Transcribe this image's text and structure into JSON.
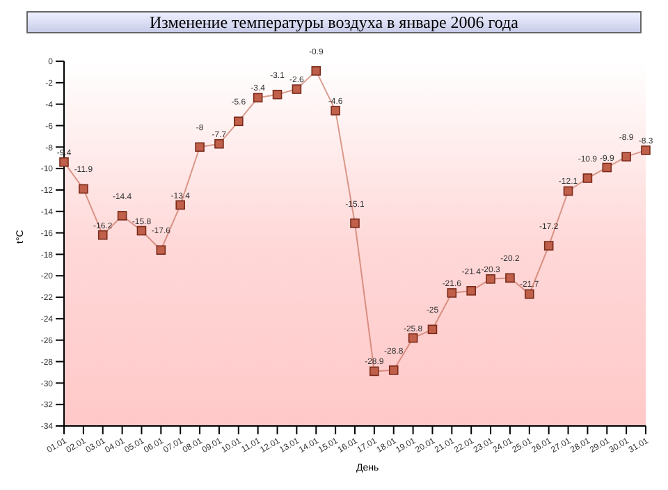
{
  "chart_data": {
    "type": "line",
    "title": "Изменение температуры воздуха в январе 2006 года",
    "xlabel": "День",
    "ylabel": "t°C",
    "categories": [
      "01.01",
      "02.01",
      "03.01",
      "04.01",
      "05.01",
      "06.01",
      "07.01",
      "08.01",
      "09.01",
      "10.01",
      "11.01",
      "12.01",
      "13.01",
      "14.01",
      "15.01",
      "16.01",
      "17.01",
      "18.01",
      "19.01",
      "20.01",
      "21.01",
      "22.01",
      "23.01",
      "24.01",
      "25.01",
      "26.01",
      "27.01",
      "28.01",
      "29.01",
      "30.01",
      "31.01"
    ],
    "series": [
      {
        "color": "#c0604a",
        "values": [
          -9.4,
          -11.9,
          -16.2,
          -14.4,
          -15.8,
          -17.6,
          -13.4,
          -8,
          -7.7,
          -5.6,
          -3.4,
          -3.1,
          -2.6,
          -0.9,
          -4.6,
          -15.1,
          -28.9,
          -28.8,
          -25.8,
          -25,
          -21.6,
          -21.4,
          -20.3,
          -20.2,
          -21.7,
          -17.2,
          -12.1,
          -10.9,
          -9.9,
          -8.9,
          -8.3
        ]
      }
    ],
    "ylim": [
      -34,
      0
    ],
    "yticks": [
      0,
      -2,
      -4,
      -6,
      -8,
      -10,
      -12,
      -14,
      -16,
      -18,
      -20,
      -22,
      -24,
      -26,
      -28,
      -30,
      -32,
      -34
    ],
    "data_labels": true,
    "marker": "square",
    "grid": false,
    "legend": false,
    "line_style": "solid"
  }
}
